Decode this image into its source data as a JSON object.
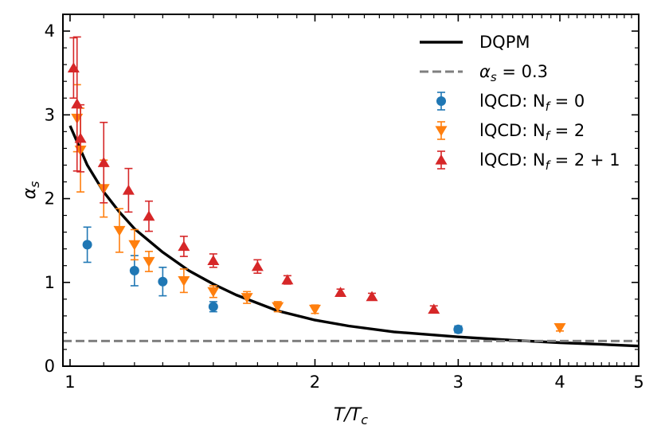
{
  "chart_data": {
    "type": "scatter",
    "xscale": "log",
    "xlim": [
      0.98,
      5.0
    ],
    "ylim": [
      0,
      4.2
    ],
    "xticks": [
      1,
      2,
      3,
      4,
      5
    ],
    "xtick_labels": [
      "1",
      "2",
      "3",
      "4",
      "5"
    ],
    "yticks": [
      0,
      1,
      2,
      3,
      4
    ],
    "ytick_labels": [
      "0",
      "1",
      "2",
      "3",
      "4"
    ],
    "xlabel": "T/T",
    "xlabel_sub": "c",
    "ylabel": "α",
    "ylabel_sub": "s",
    "legend_position": "top-right",
    "line_series": [
      {
        "name": "DQPM",
        "legend_label": "DQPM",
        "color": "#000000",
        "style": "solid",
        "x": [
          1.0,
          1.05,
          1.1,
          1.15,
          1.2,
          1.3,
          1.4,
          1.5,
          1.6,
          1.8,
          2.0,
          2.2,
          2.5,
          3.0,
          3.5,
          4.0,
          4.5,
          5.0
        ],
        "y": [
          2.87,
          2.4,
          2.08,
          1.84,
          1.64,
          1.36,
          1.14,
          0.98,
          0.85,
          0.66,
          0.55,
          0.48,
          0.41,
          0.35,
          0.31,
          0.28,
          0.26,
          0.24
        ]
      },
      {
        "name": "alpha_s_const",
        "legend_label": "α",
        "legend_sub": "s",
        "legend_suffix": " = 0.3",
        "color": "#7f7f7f",
        "style": "dashed",
        "x": [
          0.98,
          5.0
        ],
        "y": [
          0.3,
          0.3
        ]
      }
    ],
    "series": [
      {
        "name": "lQCD Nf=0",
        "legend_label": "lQCD: N",
        "legend_sub": "f",
        "legend_suffix": " = 0",
        "marker": "circle",
        "color": "#1f77b4",
        "points": [
          {
            "x": 1.05,
            "y": 1.45,
            "err": 0.21
          },
          {
            "x": 1.2,
            "y": 1.14,
            "err": 0.18
          },
          {
            "x": 1.3,
            "y": 1.01,
            "err": 0.17
          },
          {
            "x": 1.5,
            "y": 0.71,
            "err": 0.06
          },
          {
            "x": 3.0,
            "y": 0.44,
            "err": 0.04
          }
        ]
      },
      {
        "name": "lQCD Nf=2",
        "legend_label": "lQCD: N",
        "legend_sub": "f",
        "legend_suffix": " = 2",
        "marker": "triangle-down",
        "color": "#ff7f0e",
        "points": [
          {
            "x": 1.02,
            "y": 2.96,
            "err": 0.4
          },
          {
            "x": 1.03,
            "y": 2.58,
            "err": 0.5
          },
          {
            "x": 1.1,
            "y": 2.12,
            "err": 0.34
          },
          {
            "x": 1.15,
            "y": 1.62,
            "err": 0.26
          },
          {
            "x": 1.2,
            "y": 1.45,
            "err": 0.18
          },
          {
            "x": 1.25,
            "y": 1.25,
            "err": 0.12
          },
          {
            "x": 1.38,
            "y": 1.02,
            "err": 0.14
          },
          {
            "x": 1.5,
            "y": 0.89,
            "err": 0.07
          },
          {
            "x": 1.65,
            "y": 0.82,
            "err": 0.07
          },
          {
            "x": 1.8,
            "y": 0.71,
            "err": 0.06
          },
          {
            "x": 2.0,
            "y": 0.68,
            "err": 0.05
          },
          {
            "x": 4.0,
            "y": 0.46,
            "err": 0.04
          }
        ]
      },
      {
        "name": "lQCD Nf=2+1",
        "legend_label": "lQCD: N",
        "legend_sub": "f",
        "legend_suffix": " = 2 + 1",
        "marker": "triangle-up",
        "color": "#d62728",
        "points": [
          {
            "x": 1.01,
            "y": 3.56,
            "err": 0.36
          },
          {
            "x": 1.02,
            "y": 3.13,
            "err": 0.8
          },
          {
            "x": 1.03,
            "y": 2.72,
            "err": 0.4
          },
          {
            "x": 1.1,
            "y": 2.43,
            "err": 0.48
          },
          {
            "x": 1.18,
            "y": 2.1,
            "err": 0.26
          },
          {
            "x": 1.25,
            "y": 1.79,
            "err": 0.18
          },
          {
            "x": 1.38,
            "y": 1.43,
            "err": 0.12
          },
          {
            "x": 1.5,
            "y": 1.26,
            "err": 0.08
          },
          {
            "x": 1.7,
            "y": 1.19,
            "err": 0.08
          },
          {
            "x": 1.85,
            "y": 1.03,
            "err": 0.05
          },
          {
            "x": 2.15,
            "y": 0.88,
            "err": 0.04
          },
          {
            "x": 2.35,
            "y": 0.83,
            "err": 0.04
          },
          {
            "x": 2.8,
            "y": 0.68,
            "err": 0.04
          }
        ]
      }
    ]
  }
}
